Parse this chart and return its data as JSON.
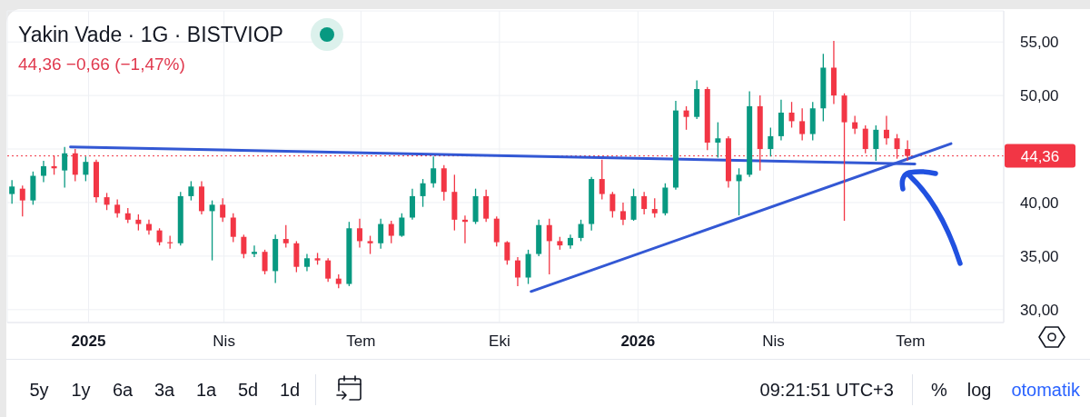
{
  "chart_data": {
    "type": "candlestick",
    "title": "Yakin Vade · 1G · BISTVIOP",
    "subtitle": "44,36 −0,66 (−1,47%)",
    "x": [
      "2024-11-11",
      "2024-11-18",
      "2024-11-25",
      "2024-12-02",
      "2024-12-09",
      "2024-12-16",
      "2024-12-23",
      "2024-12-30",
      "2025-01-06",
      "2025-01-13",
      "2025-01-20",
      "2025-01-27",
      "2025-02-03",
      "2025-02-10",
      "2025-02-17",
      "2025-02-24",
      "2025-03-03",
      "2025-03-10",
      "2025-03-17",
      "2025-03-24",
      "2025-03-31",
      "2025-04-07",
      "2025-04-14",
      "2025-04-21",
      "2025-04-28",
      "2025-05-05",
      "2025-05-12",
      "2025-05-19",
      "2025-05-26",
      "2025-06-02",
      "2025-06-09",
      "2025-06-16",
      "2025-06-23",
      "2025-06-30",
      "2025-07-07",
      "2025-07-14",
      "2025-07-21",
      "2025-07-28",
      "2025-08-04",
      "2025-08-11",
      "2025-08-18",
      "2025-08-25",
      "2025-09-01",
      "2025-09-08",
      "2025-09-15",
      "2025-09-22",
      "2025-09-29",
      "2025-10-06",
      "2025-10-13",
      "2025-10-20",
      "2025-10-27",
      "2025-11-03",
      "2025-11-10",
      "2025-11-17",
      "2025-11-24",
      "2025-12-01",
      "2025-12-08",
      "2025-12-15",
      "2025-12-22",
      "2025-12-29",
      "2026-01-05",
      "2026-01-12",
      "2026-01-19",
      "2026-01-26",
      "2026-02-02",
      "2026-02-09",
      "2026-02-16",
      "2026-02-23",
      "2026-03-02",
      "2026-03-09",
      "2026-03-16",
      "2026-03-23",
      "2026-03-30",
      "2026-04-06",
      "2026-04-13",
      "2026-04-20",
      "2026-04-27",
      "2026-05-04",
      "2026-05-11",
      "2026-05-18",
      "2026-05-25",
      "2026-06-01",
      "2026-06-08",
      "2026-06-15",
      "2026-06-22",
      "2026-06-29"
    ],
    "ohlc": [
      [
        40.8,
        42.1,
        39.9,
        41.5
      ],
      [
        41.3,
        41.6,
        38.7,
        40.2
      ],
      [
        40.2,
        42.9,
        39.8,
        42.5
      ],
      [
        42.5,
        43.9,
        41.9,
        43.4
      ],
      [
        43.4,
        44.4,
        42.6,
        43.2
      ],
      [
        43.0,
        45.2,
        41.4,
        44.6
      ],
      [
        44.6,
        45.0,
        42.0,
        42.6
      ],
      [
        42.6,
        44.3,
        42.0,
        43.8
      ],
      [
        43.8,
        44.0,
        40.0,
        40.5
      ],
      [
        40.5,
        40.9,
        39.3,
        39.8
      ],
      [
        39.8,
        40.3,
        38.6,
        39.0
      ],
      [
        39.0,
        39.5,
        38.1,
        38.4
      ],
      [
        38.4,
        38.9,
        37.4,
        38.0
      ],
      [
        38.0,
        38.4,
        37.0,
        37.4
      ],
      [
        37.4,
        37.6,
        36.0,
        36.3
      ],
      [
        36.3,
        36.9,
        35.7,
        36.2
      ],
      [
        36.2,
        41.0,
        36.0,
        40.6
      ],
      [
        40.6,
        42.0,
        40.2,
        41.5
      ],
      [
        41.5,
        42.0,
        38.9,
        39.2
      ],
      [
        39.2,
        40.2,
        34.6,
        39.8
      ],
      [
        39.8,
        40.4,
        38.2,
        38.6
      ],
      [
        38.6,
        39.0,
        36.3,
        36.8
      ],
      [
        36.8,
        37.0,
        34.8,
        35.2
      ],
      [
        35.2,
        36.0,
        34.9,
        35.4
      ],
      [
        35.4,
        35.6,
        33.3,
        33.6
      ],
      [
        33.6,
        37.0,
        32.5,
        36.6
      ],
      [
        36.6,
        37.9,
        35.8,
        36.2
      ],
      [
        36.2,
        36.4,
        33.5,
        34.0
      ],
      [
        34.0,
        35.2,
        33.6,
        34.8
      ],
      [
        34.8,
        35.3,
        34.2,
        34.6
      ],
      [
        34.6,
        34.8,
        32.6,
        32.9
      ],
      [
        32.9,
        33.3,
        32.0,
        32.4
      ],
      [
        32.4,
        38.2,
        32.2,
        37.6
      ],
      [
        37.6,
        38.5,
        35.8,
        36.4
      ],
      [
        36.4,
        36.9,
        35.2,
        36.2
      ],
      [
        36.2,
        38.5,
        35.7,
        38.0
      ],
      [
        38.0,
        38.3,
        36.2,
        36.9
      ],
      [
        36.9,
        39.0,
        36.8,
        38.6
      ],
      [
        38.6,
        41.3,
        38.4,
        40.6
      ],
      [
        40.6,
        42.2,
        39.6,
        41.8
      ],
      [
        41.8,
        44.3,
        41.4,
        43.2
      ],
      [
        43.2,
        43.5,
        40.2,
        41.0
      ],
      [
        41.0,
        42.6,
        37.4,
        38.4
      ],
      [
        38.4,
        38.8,
        36.2,
        38.2
      ],
      [
        38.2,
        41.3,
        38.0,
        40.6
      ],
      [
        40.6,
        41.2,
        38.2,
        38.5
      ],
      [
        38.5,
        38.7,
        35.9,
        36.3
      ],
      [
        36.3,
        36.4,
        34.2,
        34.6
      ],
      [
        34.6,
        34.9,
        32.2,
        33.0
      ],
      [
        33.0,
        35.6,
        32.4,
        35.2
      ],
      [
        35.2,
        38.4,
        35.0,
        37.9
      ],
      [
        37.9,
        38.5,
        33.3,
        36.4
      ],
      [
        36.4,
        36.8,
        35.6,
        36.0
      ],
      [
        36.0,
        37.0,
        35.7,
        36.7
      ],
      [
        36.7,
        38.4,
        36.4,
        38.0
      ],
      [
        38.0,
        42.4,
        37.4,
        42.2
      ],
      [
        42.2,
        44.0,
        40.3,
        40.8
      ],
      [
        40.8,
        41.0,
        38.6,
        39.2
      ],
      [
        39.2,
        40.0,
        37.9,
        38.4
      ],
      [
        38.4,
        41.3,
        38.3,
        40.6
      ],
      [
        40.6,
        41.0,
        38.9,
        39.4
      ],
      [
        39.4,
        40.4,
        38.6,
        39.0
      ],
      [
        39.0,
        41.8,
        38.8,
        41.4
      ],
      [
        41.4,
        49.5,
        41.2,
        48.6
      ],
      [
        48.6,
        49.0,
        46.8,
        48.0
      ],
      [
        48.0,
        51.4,
        47.8,
        50.6
      ],
      [
        50.6,
        50.8,
        44.9,
        45.6
      ],
      [
        45.6,
        47.5,
        44.2,
        46.0
      ],
      [
        46.0,
        46.2,
        41.4,
        42.0
      ],
      [
        42.0,
        43.2,
        38.8,
        42.6
      ],
      [
        42.6,
        50.4,
        42.4,
        49.0
      ],
      [
        49.0,
        50.0,
        43.0,
        45.0
      ],
      [
        45.0,
        47.0,
        44.3,
        46.2
      ],
      [
        46.2,
        49.6,
        45.8,
        48.4
      ],
      [
        48.4,
        49.4,
        47.0,
        47.6
      ],
      [
        47.6,
        48.8,
        45.8,
        46.4
      ],
      [
        46.4,
        49.4,
        45.8,
        48.8
      ],
      [
        48.8,
        53.9,
        47.6,
        52.6
      ],
      [
        52.6,
        55.1,
        49.2,
        50.0
      ],
      [
        50.0,
        50.2,
        38.3,
        47.5
      ],
      [
        47.5,
        48.1,
        46.4,
        46.9
      ],
      [
        46.9,
        47.2,
        44.6,
        45.0
      ],
      [
        45.0,
        47.2,
        43.9,
        46.8
      ],
      [
        46.8,
        48.1,
        45.4,
        46.0
      ],
      [
        46.0,
        46.4,
        44.1,
        45.0
      ],
      [
        45.0,
        45.8,
        43.9,
        44.36
      ]
    ],
    "colors": [
      "#089981",
      "#f23645",
      "#089981",
      "#089981",
      "#f23645",
      "#089981",
      "#f23645",
      "#089981",
      "#f23645",
      "#f23645",
      "#f23645",
      "#f23645",
      "#f23645",
      "#f23645",
      "#f23645",
      "#f23645",
      "#089981",
      "#089981",
      "#f23645",
      "#089981",
      "#f23645",
      "#f23645",
      "#f23645",
      "#089981",
      "#f23645",
      "#089981",
      "#f23645",
      "#f23645",
      "#089981",
      "#f23645",
      "#f23645",
      "#f23645",
      "#089981",
      "#f23645",
      "#f23645",
      "#089981",
      "#f23645",
      "#089981",
      "#089981",
      "#089981",
      "#089981",
      "#f23645",
      "#f23645",
      "#f23645",
      "#089981",
      "#f23645",
      "#f23645",
      "#f23645",
      "#f23645",
      "#089981",
      "#089981",
      "#f23645",
      "#f23645",
      "#089981",
      "#089981",
      "#089981",
      "#f23645",
      "#f23645",
      "#f23645",
      "#089981",
      "#f23645",
      "#f23645",
      "#089981",
      "#089981",
      "#f23645",
      "#089981",
      "#f23645",
      "#089981",
      "#f23645",
      "#089981",
      "#089981",
      "#f23645",
      "#089981",
      "#089981",
      "#f23645",
      "#f23645",
      "#089981",
      "#089981",
      "#f23645",
      "#f23645",
      "#f23645",
      "#f23645",
      "#089981",
      "#f23645",
      "#f23645",
      "#f23645"
    ],
    "series": [
      {
        "type": "line",
        "color": "#3358d4",
        "marker": "none",
        "x": [
          "2024-12-20",
          "2026-07-04"
        ],
        "values": [
          45.2,
          43.6
        ]
      },
      {
        "type": "line",
        "color": "#3358d4",
        "marker": "none",
        "x": [
          "2025-10-22",
          "2026-07-28"
        ],
        "values": [
          31.7,
          45.5
        ]
      }
    ],
    "xlim": [
      "2024-11-08",
      "2026-09-01"
    ],
    "xticks": [
      {
        "value": "2025-01-01",
        "label": "2025"
      },
      {
        "value": "2025-04-01",
        "label": "Nis"
      },
      {
        "value": "2025-07-01",
        "label": "Tem"
      },
      {
        "value": "2025-10-01",
        "label": "Eki"
      },
      {
        "value": "2026-01-01",
        "label": "2026"
      },
      {
        "value": "2026-04-01",
        "label": "Nis"
      },
      {
        "value": "2026-07-01",
        "label": "Tem"
      }
    ],
    "ylim": [
      28.8,
      57.9
    ],
    "yticks": [
      {
        "value": 30,
        "label": "30,00"
      },
      {
        "value": 35,
        "label": "35,00"
      },
      {
        "value": 40,
        "label": "40,00"
      },
      {
        "value": 45,
        "label": null
      },
      {
        "value": 50,
        "label": "50,00"
      },
      {
        "value": 55,
        "label": "55,00"
      }
    ],
    "grid": true,
    "ref_lines": [
      {
        "axis": "y",
        "value": 44.36,
        "label": "44,36",
        "color": "#f23645",
        "line_style": "dotted"
      }
    ],
    "annotations": [
      "5y",
      "1y",
      "6a",
      "3a",
      "1a",
      "5d",
      "1d",
      "09:21:51 UTC+3",
      "%",
      "log",
      "otomatik"
    ]
  }
}
